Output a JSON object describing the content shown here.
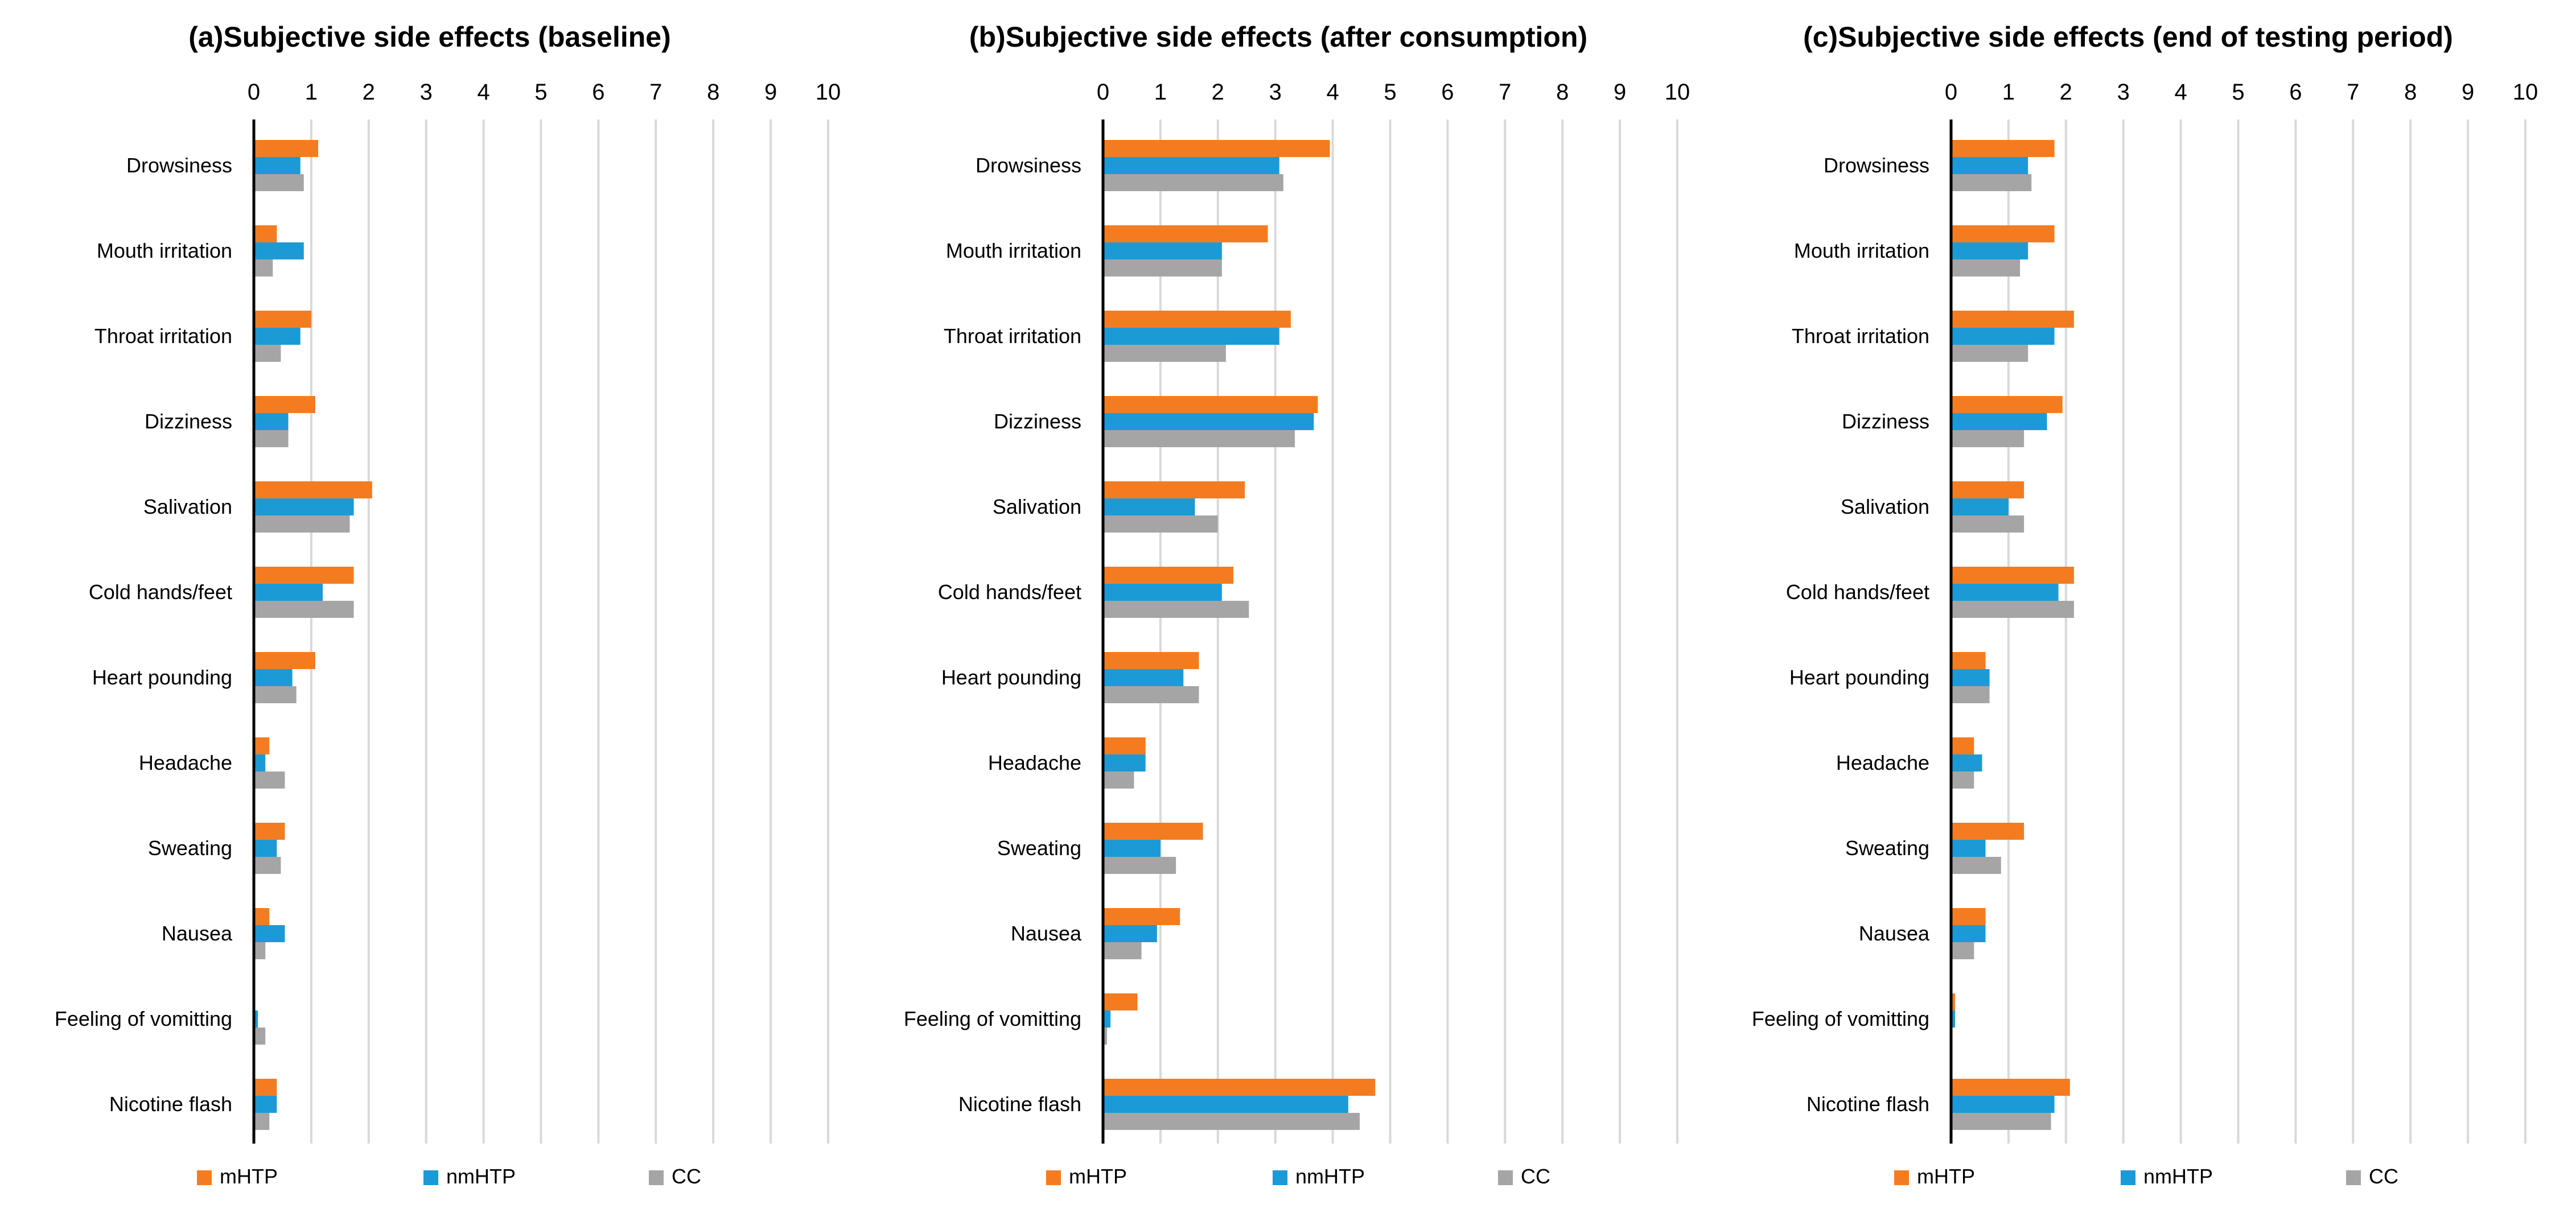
{
  "chart_data": [
    {
      "type": "bar",
      "orientation": "horizontal",
      "panel_label": "(a)",
      "title": "Subjective side effects (baseline)",
      "xlim": [
        0,
        10
      ],
      "xticks": [
        "0",
        "1",
        "2",
        "3",
        "4",
        "5",
        "6",
        "7",
        "8",
        "9",
        "10"
      ],
      "categories": [
        "Drowsiness",
        "Mouth irritation",
        "Throat irritation",
        "Dizziness",
        "Salivation",
        "Cold hands/feet",
        "Heart pounding",
        "Headache",
        "Sweating",
        "Nausea",
        "Feeling of vomitting",
        "Nicotine flash"
      ],
      "series": [
        {
          "name": "mHTP",
          "values": [
            1.12,
            0.4,
            1.0,
            1.07,
            2.06,
            1.74,
            1.07,
            0.27,
            0.54,
            0.27,
            0.0,
            0.4
          ]
        },
        {
          "name": "nmHTP",
          "values": [
            0.81,
            0.87,
            0.81,
            0.6,
            1.74,
            1.2,
            0.67,
            0.2,
            0.4,
            0.54,
            0.07,
            0.4
          ]
        },
        {
          "name": "CC",
          "values": [
            0.87,
            0.33,
            0.47,
            0.6,
            1.67,
            1.74,
            0.74,
            0.54,
            0.47,
            0.2,
            0.2,
            0.27
          ]
        }
      ],
      "legend": [
        "mHTP",
        "nmHTP",
        "CC"
      ],
      "legend_position": "bottom"
    },
    {
      "type": "bar",
      "orientation": "horizontal",
      "panel_label": "(b)",
      "title": "Subjective side effects (after consumption)",
      "xlim": [
        0,
        10
      ],
      "xticks": [
        "0",
        "1",
        "2",
        "3",
        "4",
        "5",
        "6",
        "7",
        "8",
        "9",
        "10"
      ],
      "categories": [
        "Drowsiness",
        "Mouth irritation",
        "Throat irritation",
        "Dizziness",
        "Salivation",
        "Cold hands/feet",
        "Heart pounding",
        "Headache",
        "Sweating",
        "Nausea",
        "Feeling of vomitting",
        "Nicotine flash"
      ],
      "series": [
        {
          "name": "mHTP",
          "values": [
            3.95,
            2.87,
            3.27,
            3.74,
            2.47,
            2.27,
            1.67,
            0.74,
            1.74,
            1.34,
            0.6,
            4.74
          ]
        },
        {
          "name": "nmHTP",
          "values": [
            3.07,
            2.07,
            3.07,
            3.67,
            1.6,
            2.07,
            1.4,
            0.74,
            1.0,
            0.94,
            0.13,
            4.27
          ]
        },
        {
          "name": "CC",
          "values": [
            3.14,
            2.07,
            2.14,
            3.34,
            2.0,
            2.54,
            1.67,
            0.54,
            1.27,
            0.67,
            0.07,
            4.47
          ]
        }
      ],
      "legend": [
        "mHTP",
        "nmHTP",
        "CC"
      ],
      "legend_position": "bottom"
    },
    {
      "type": "bar",
      "orientation": "horizontal",
      "panel_label": "(c)",
      "title": "Subjective side effects (end of testing period)",
      "xlim": [
        0,
        10
      ],
      "xticks": [
        "0",
        "1",
        "2",
        "3",
        "4",
        "5",
        "6",
        "7",
        "8",
        "9",
        "10"
      ],
      "categories": [
        "Drowsiness",
        "Mouth irritation",
        "Throat irritation",
        "Dizziness",
        "Salivation",
        "Cold hands/feet",
        "Heart pounding",
        "Headache",
        "Sweating",
        "Nausea",
        "Feeling of vomitting",
        "Nicotine flash"
      ],
      "series": [
        {
          "name": "mHTP",
          "values": [
            1.8,
            1.8,
            2.14,
            1.94,
            1.27,
            2.14,
            0.6,
            0.4,
            1.27,
            0.6,
            0.07,
            2.07
          ]
        },
        {
          "name": "nmHTP",
          "values": [
            1.34,
            1.34,
            1.8,
            1.67,
            1.0,
            1.87,
            0.67,
            0.54,
            0.6,
            0.6,
            0.07,
            1.8
          ]
        },
        {
          "name": "CC",
          "values": [
            1.4,
            1.2,
            1.34,
            1.27,
            1.27,
            2.14,
            0.67,
            0.4,
            0.87,
            0.4,
            0.0,
            1.74
          ]
        }
      ],
      "legend": [
        "mHTP",
        "nmHTP",
        "CC"
      ],
      "legend_position": "bottom"
    }
  ],
  "colors": {
    "mHTP": "#f47c20",
    "nmHTP": "#1c9ad6",
    "CC": "#a5a5a5",
    "gridline": "#d9d9d9",
    "axis": "#000000",
    "text": "#000000"
  }
}
